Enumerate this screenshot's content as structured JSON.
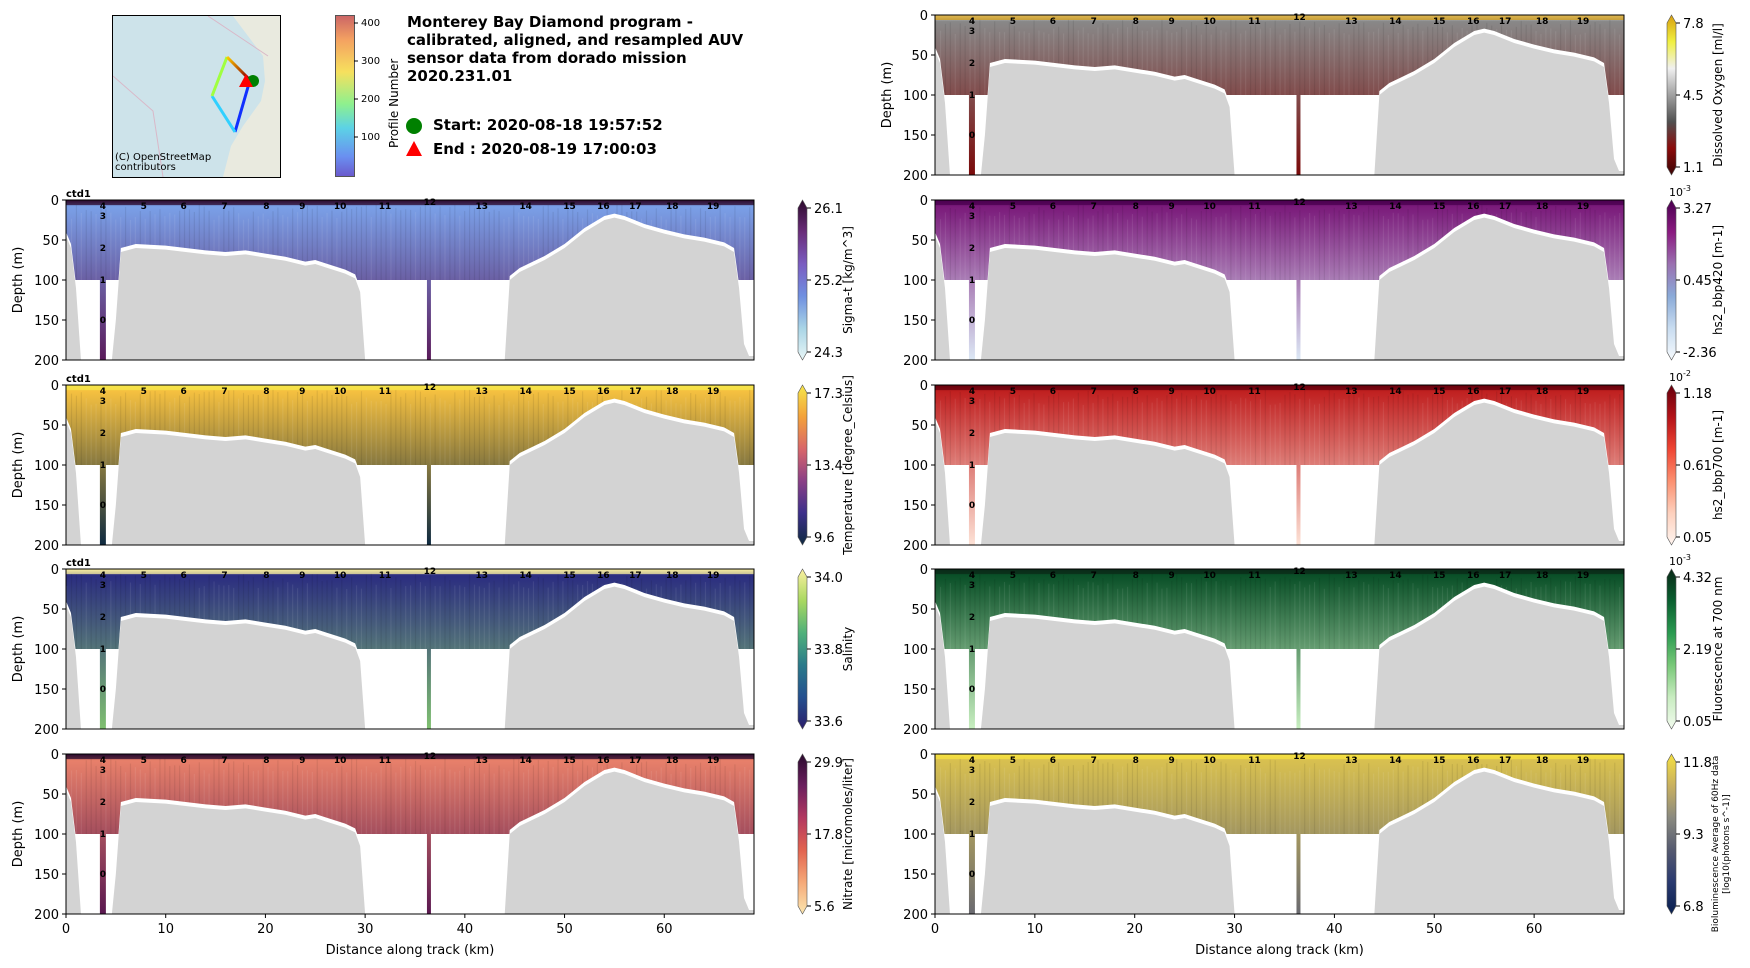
{
  "header": {
    "title_lines": [
      "Monterey Bay Diamond program -",
      "calibrated, aligned, and resampled AUV",
      "sensor data from dorado mission",
      "2020.231.01"
    ],
    "start_label": "Start: 2020-08-18 19:57:52",
    "end_label": "End  : 2020-08-19 17:00:03",
    "start_marker_color": "#008000",
    "end_marker_color": "#ff0000",
    "map_attribution_lines": [
      "(C) OpenStreetMap",
      "contributors"
    ],
    "profile_colorbar": {
      "label": "Profile Number",
      "ticks": [
        "100",
        "200",
        "300",
        "400"
      ],
      "range": [
        0,
        420
      ]
    }
  },
  "chart_data": [
    {
      "type": "heatmap",
      "id": "sigma_t",
      "column": "left",
      "row": 1,
      "panel_label": "ctd1",
      "ylabel": "Depth (m)",
      "xlabel": "",
      "ylim": [
        200,
        0
      ],
      "xlim": [
        0,
        69
      ],
      "yticks": [
        "0",
        "50",
        "100",
        "150",
        "200"
      ],
      "xticks": [],
      "colorbar": {
        "label": "Sigma-t [kg/m^3]",
        "ticks": [
          "26.1",
          "25.2",
          "24.3"
        ],
        "scale": "",
        "colors": [
          "#2d0a2e",
          "#6a2d7a",
          "#7a5cc0",
          "#6f8fe0",
          "#a8d4e6",
          "#e8f6f6"
        ],
        "extend": "both"
      },
      "data_colors": {
        "surface": "#7aa0e8",
        "deep": "#5a1a5a"
      }
    },
    {
      "type": "heatmap",
      "id": "temperature",
      "column": "left",
      "row": 2,
      "panel_label": "ctd1",
      "ylabel": "Depth (m)",
      "xlabel": "",
      "ylim": [
        200,
        0
      ],
      "xlim": [
        0,
        69
      ],
      "yticks": [
        "0",
        "50",
        "100",
        "150",
        "200"
      ],
      "xticks": [],
      "colorbar": {
        "label": "Temperature [degree_Celsius]",
        "ticks": [
          "17.3",
          "13.4",
          "9.6"
        ],
        "scale": "",
        "colors": [
          "#f6e64a",
          "#f3a13a",
          "#d8666a",
          "#8a3f86",
          "#3c2f8a",
          "#0e2a40"
        ],
        "extend": "both"
      },
      "data_colors": {
        "surface": "#f5c040",
        "deep": "#0e2a40"
      }
    },
    {
      "type": "heatmap",
      "id": "salinity",
      "column": "left",
      "row": 3,
      "panel_label": "ctd1",
      "ylabel": "Depth (m)",
      "xlabel": "",
      "ylim": [
        200,
        0
      ],
      "xlim": [
        0,
        69
      ],
      "yticks": [
        "0",
        "50",
        "100",
        "150",
        "200"
      ],
      "xticks": [],
      "colorbar": {
        "label": "Salinity",
        "ticks": [
          "34.0",
          "33.8",
          "33.6"
        ],
        "scale": "",
        "colors": [
          "#fbf0a0",
          "#a8d860",
          "#4fb07a",
          "#2a7a8a",
          "#24508f",
          "#2b1e6a"
        ],
        "extend": "both"
      },
      "data_colors": {
        "surface": "#2b2d80",
        "deep": "#7fc070"
      }
    },
    {
      "type": "heatmap",
      "id": "nitrate",
      "column": "left",
      "row": 4,
      "panel_label": "",
      "ylabel": "Depth (m)",
      "xlabel": "Distance along track (km)",
      "ylim": [
        200,
        0
      ],
      "xlim": [
        0,
        69
      ],
      "yticks": [
        "0",
        "50",
        "100",
        "150",
        "200"
      ],
      "xticks": [
        "0",
        "10",
        "20",
        "30",
        "40",
        "50",
        "60"
      ],
      "colorbar": {
        "label": "Nitrate [micromoles/liter]",
        "ticks": [
          "29.9",
          "17.8",
          "5.6"
        ],
        "scale": "",
        "colors": [
          "#2a0a2e",
          "#6b1f5e",
          "#b33860",
          "#e2634f",
          "#f5a877",
          "#fbe6b0"
        ],
        "extend": "both"
      },
      "data_colors": {
        "surface": "#e8806a",
        "deep": "#5a1850"
      }
    },
    {
      "type": "heatmap",
      "id": "oxygen",
      "column": "right",
      "row": 0,
      "panel_label": "",
      "ylabel": "Depth (m)",
      "xlabel": "",
      "ylim": [
        200,
        0
      ],
      "xlim": [
        0,
        69
      ],
      "yticks": [
        "0",
        "50",
        "100",
        "150",
        "200"
      ],
      "xticks": [],
      "colorbar": {
        "label": "Dissolved Oxygen [ml/l]",
        "ticks": [
          "7.8",
          "4.5",
          "1.1"
        ],
        "scale": "",
        "colors": [
          "#d8a010",
          "#f0f040",
          "#f0f0f0",
          "#a0a0a0",
          "#505050",
          "#8b0a0a",
          "#3a0505"
        ],
        "extend": "both"
      },
      "data_colors": {
        "surface": "#888888",
        "deep": "#7a0a0a"
      }
    },
    {
      "type": "heatmap",
      "id": "bbp420",
      "column": "right",
      "row": 1,
      "panel_label": "",
      "ylabel": "",
      "xlabel": "",
      "ylim": [
        200,
        0
      ],
      "xlim": [
        0,
        69
      ],
      "yticks": [
        "0",
        "50",
        "100",
        "150",
        "200"
      ],
      "xticks": [],
      "colorbar": {
        "label": "hs2_bbp420 [m-1]",
        "ticks": [
          "3.27",
          "0.45",
          "-2.36"
        ],
        "scale": "10^-3",
        "colors": [
          "#4a0050",
          "#8a1a80",
          "#9a70b0",
          "#8aaad8",
          "#c8dcf0",
          "#f6fafd"
        ],
        "extend": "both"
      },
      "data_colors": {
        "surface": "#7a1a7a",
        "deep": "#dce8f5"
      }
    },
    {
      "type": "heatmap",
      "id": "bbp700",
      "column": "right",
      "row": 2,
      "panel_label": "",
      "ylabel": "",
      "xlabel": "",
      "ylim": [
        200,
        0
      ],
      "xlim": [
        0,
        69
      ],
      "yticks": [
        "0",
        "50",
        "100",
        "150",
        "200"
      ],
      "xticks": [],
      "colorbar": {
        "label": "hs2_bbp700 [m-1]",
        "ticks": [
          "1.18",
          "0.61",
          "0.05"
        ],
        "scale": "10^-2",
        "colors": [
          "#67000d",
          "#b31218",
          "#ef4533",
          "#fc9070",
          "#fdd0bd",
          "#fff5f0"
        ],
        "extend": "both"
      },
      "data_colors": {
        "surface": "#c02020",
        "deep": "#fde2d6"
      }
    },
    {
      "type": "heatmap",
      "id": "fluorescence",
      "column": "right",
      "row": 3,
      "panel_label": "",
      "ylabel": "",
      "xlabel": "",
      "ylim": [
        200,
        0
      ],
      "xlim": [
        0,
        69
      ],
      "yticks": [
        "0",
        "50",
        "100",
        "150",
        "200"
      ],
      "xticks": [],
      "colorbar": {
        "label": "Fluorescence at 700 nm",
        "ticks": [
          "4.32",
          "2.19",
          "0.05"
        ],
        "scale": "10^-3",
        "colors": [
          "#0a2a18",
          "#0a6030",
          "#2a9a50",
          "#78c878",
          "#c8ecc0",
          "#f2fbee"
        ],
        "extend": "both"
      },
      "data_colors": {
        "surface": "#0a5028",
        "deep": "#c8efc0"
      }
    },
    {
      "type": "heatmap",
      "id": "bioluminescence",
      "column": "right",
      "row": 4,
      "panel_label": "",
      "ylabel": "",
      "xlabel": "Distance along track (km)",
      "ylim": [
        200,
        0
      ],
      "xlim": [
        0,
        69
      ],
      "yticks": [
        "0",
        "50",
        "100",
        "150",
        "200"
      ],
      "xticks": [
        "0",
        "10",
        "20",
        "30",
        "40",
        "50",
        "60"
      ],
      "colorbar": {
        "label_lines": [
          "Bioluminescence Average of 60Hz data",
          "[log10(photons s^-1)]"
        ],
        "ticks": [
          "11.8",
          "9.3",
          "6.8"
        ],
        "scale": "",
        "colors": [
          "#f5e040",
          "#c8b060",
          "#8a8a80",
          "#555a70",
          "#2a3a70",
          "#0a2050"
        ],
        "extend": "both"
      },
      "data_colors": {
        "surface": "#d8c050",
        "deep": "#6a6a70"
      }
    }
  ],
  "profile_labels": {
    "top": [
      "4",
      "5",
      "6",
      "7",
      "8",
      "9",
      "10",
      "11",
      "12",
      "13",
      "14",
      "15",
      "16",
      "17",
      "18",
      "19"
    ],
    "top_km": [
      3.7,
      7.8,
      11.8,
      15.9,
      20.1,
      23.7,
      27.5,
      32.0,
      36.5,
      41.7,
      46.1,
      50.5,
      53.9,
      57.1,
      60.8,
      64.9
    ],
    "vertical": [
      "3",
      "2",
      "1",
      "0"
    ],
    "vertical_depths": [
      20,
      60,
      100,
      150
    ],
    "vertical_km": 3.7
  },
  "bathymetry": {
    "km": [
      0,
      0.5,
      1.0,
      1.5,
      2.0,
      3.0,
      4.0,
      4.6,
      5.0,
      5.5,
      7,
      10,
      14,
      16,
      18,
      20,
      22,
      24,
      25,
      25.5,
      26,
      28,
      29,
      29.5,
      30.0,
      35,
      44.0,
      44.5,
      45.5,
      48,
      50,
      52,
      54,
      55,
      56,
      58,
      60,
      62,
      64,
      66,
      67,
      67.5,
      68,
      68.5,
      69
    ],
    "depth": [
      45,
      60,
      110,
      200,
      200,
      200,
      200,
      200,
      150,
      65,
      60,
      62,
      68,
      70,
      68,
      72,
      76,
      82,
      80,
      82,
      84,
      92,
      98,
      115,
      200,
      200,
      200,
      100,
      90,
      75,
      60,
      40,
      25,
      22,
      25,
      35,
      42,
      48,
      52,
      58,
      65,
      110,
      180,
      195,
      195
    ]
  },
  "data_floor_km": [
    0,
    3.4,
    3.4,
    4.0,
    4.0,
    36.2,
    36.2,
    36.6,
    36.6,
    69
  ],
  "data_floor_depth": [
    100,
    100,
    200,
    200,
    100,
    100,
    200,
    200,
    100,
    100
  ]
}
